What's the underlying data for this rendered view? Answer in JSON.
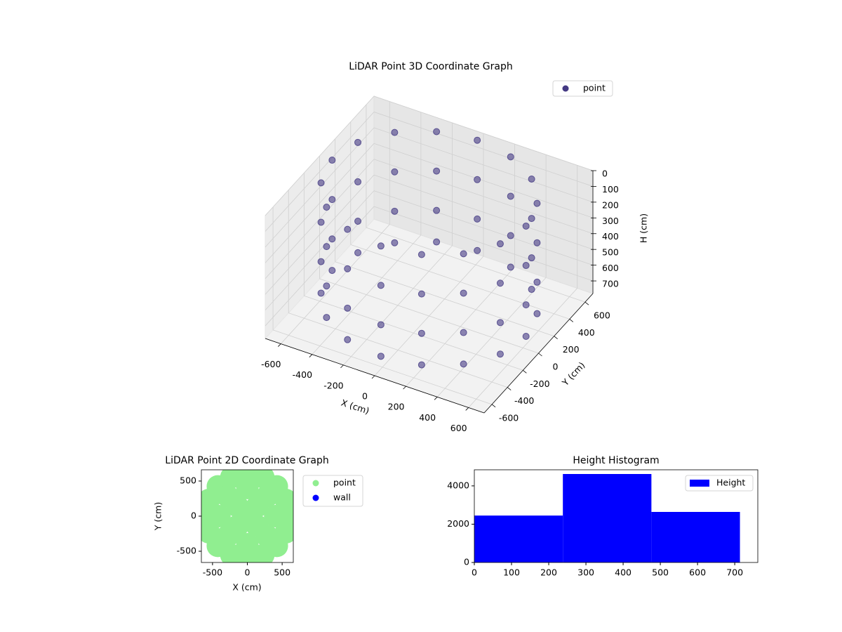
{
  "chart_data": [
    {
      "type": "scatter3d",
      "title": "LiDAR Point 3D Coordinate Graph",
      "xlabel": "X (cm)",
      "ylabel": "Y (cm)",
      "zlabel": "H (cm)",
      "xlim": [
        -700,
        700
      ],
      "ylim": [
        -700,
        700
      ],
      "zlim": [
        0,
        780
      ],
      "z_inverted": true,
      "xticks": [
        -600,
        -400,
        -200,
        0,
        200,
        400,
        600
      ],
      "yticks": [
        -600,
        -400,
        -200,
        0,
        200,
        400,
        600
      ],
      "zticks": [
        0,
        100,
        200,
        300,
        400,
        500,
        600,
        700
      ],
      "legend": "upper right",
      "grid": true,
      "series": [
        {
          "name": "point",
          "color": "#443983",
          "x": [
            620,
            573,
            438,
            237,
            0,
            -237,
            -438,
            -573,
            -620,
            -573,
            -438,
            -237,
            0,
            237,
            438,
            573,
            620,
            573,
            438,
            237,
            0,
            -237,
            -438,
            -573,
            -620,
            -573,
            -438,
            -237,
            0,
            237,
            438,
            573,
            620,
            573,
            438,
            237,
            0,
            -237,
            -438,
            -573,
            -620,
            -573,
            -438,
            -237,
            0,
            237,
            438,
            573,
            620,
            573,
            438,
            237,
            0,
            -237,
            -438,
            -573,
            -620,
            -573,
            -438,
            -237,
            0,
            237,
            438,
            573
          ],
          "y": [
            0,
            237,
            438,
            573,
            620,
            573,
            438,
            237,
            0,
            -237,
            -438,
            -573,
            -620,
            -573,
            -438,
            -237,
            0,
            237,
            438,
            573,
            620,
            573,
            438,
            237,
            0,
            -237,
            -438,
            -573,
            -620,
            -573,
            -438,
            -237,
            0,
            237,
            438,
            573,
            620,
            573,
            438,
            237,
            0,
            -237,
            -438,
            -573,
            -620,
            -573,
            -438,
            -237,
            0,
            237,
            438,
            573,
            620,
            573,
            438,
            237,
            0,
            -237,
            -438,
            -573,
            -620,
            -573,
            -438,
            -237
          ],
          "z": [
            0,
            0,
            0,
            0,
            0,
            0,
            0,
            0,
            0,
            0,
            0,
            0,
            0,
            0,
            0,
            0,
            250,
            250,
            250,
            250,
            250,
            250,
            250,
            250,
            250,
            250,
            250,
            250,
            250,
            250,
            250,
            250,
            500,
            500,
            500,
            500,
            500,
            500,
            500,
            500,
            500,
            500,
            500,
            500,
            500,
            500,
            500,
            500,
            700,
            700,
            700,
            700,
            700,
            700,
            700,
            700,
            700,
            700,
            700,
            700,
            700,
            700,
            700,
            700
          ]
        }
      ]
    },
    {
      "type": "scatter",
      "title": "LiDAR Point 2D Coordinate Graph",
      "xlabel": "X (cm)",
      "ylabel": "Y (cm)",
      "xlim": [
        -660,
        660
      ],
      "ylim": [
        -660,
        660
      ],
      "xticks": [
        -500,
        0,
        500
      ],
      "yticks": [
        -500,
        0,
        500
      ],
      "legend": "outside right",
      "series": [
        {
          "name": "point",
          "color": "#90ee90",
          "x": [
            600,
            554,
            424,
            230,
            0,
            -230,
            -424,
            -554,
            -600,
            -554,
            -424,
            -230,
            0,
            230,
            424,
            554,
            400,
            283,
            0,
            -283,
            -400,
            -283,
            0,
            283,
            141,
            -141,
            -141,
            141,
            0
          ],
          "y": [
            0,
            230,
            424,
            554,
            600,
            554,
            424,
            230,
            0,
            -230,
            -424,
            -554,
            -600,
            -554,
            -424,
            -230,
            0,
            283,
            400,
            283,
            0,
            -283,
            -400,
            -283,
            141,
            141,
            -141,
            -141,
            0
          ]
        },
        {
          "name": "wall",
          "color": "#0000ff",
          "x": [],
          "y": []
        }
      ]
    },
    {
      "type": "histogram",
      "title": "Height Histogram",
      "name": "Height",
      "color": "#0000ff",
      "bins": [
        0,
        238,
        476,
        714
      ],
      "counts": [
        2450,
        4620,
        2640
      ],
      "xlim": [
        0,
        762
      ],
      "ylim": [
        0,
        4840
      ],
      "xticks": [
        0,
        100,
        200,
        300,
        400,
        500,
        600,
        700
      ],
      "yticks": [
        0,
        2000,
        4000
      ],
      "legend": "upper right"
    }
  ]
}
